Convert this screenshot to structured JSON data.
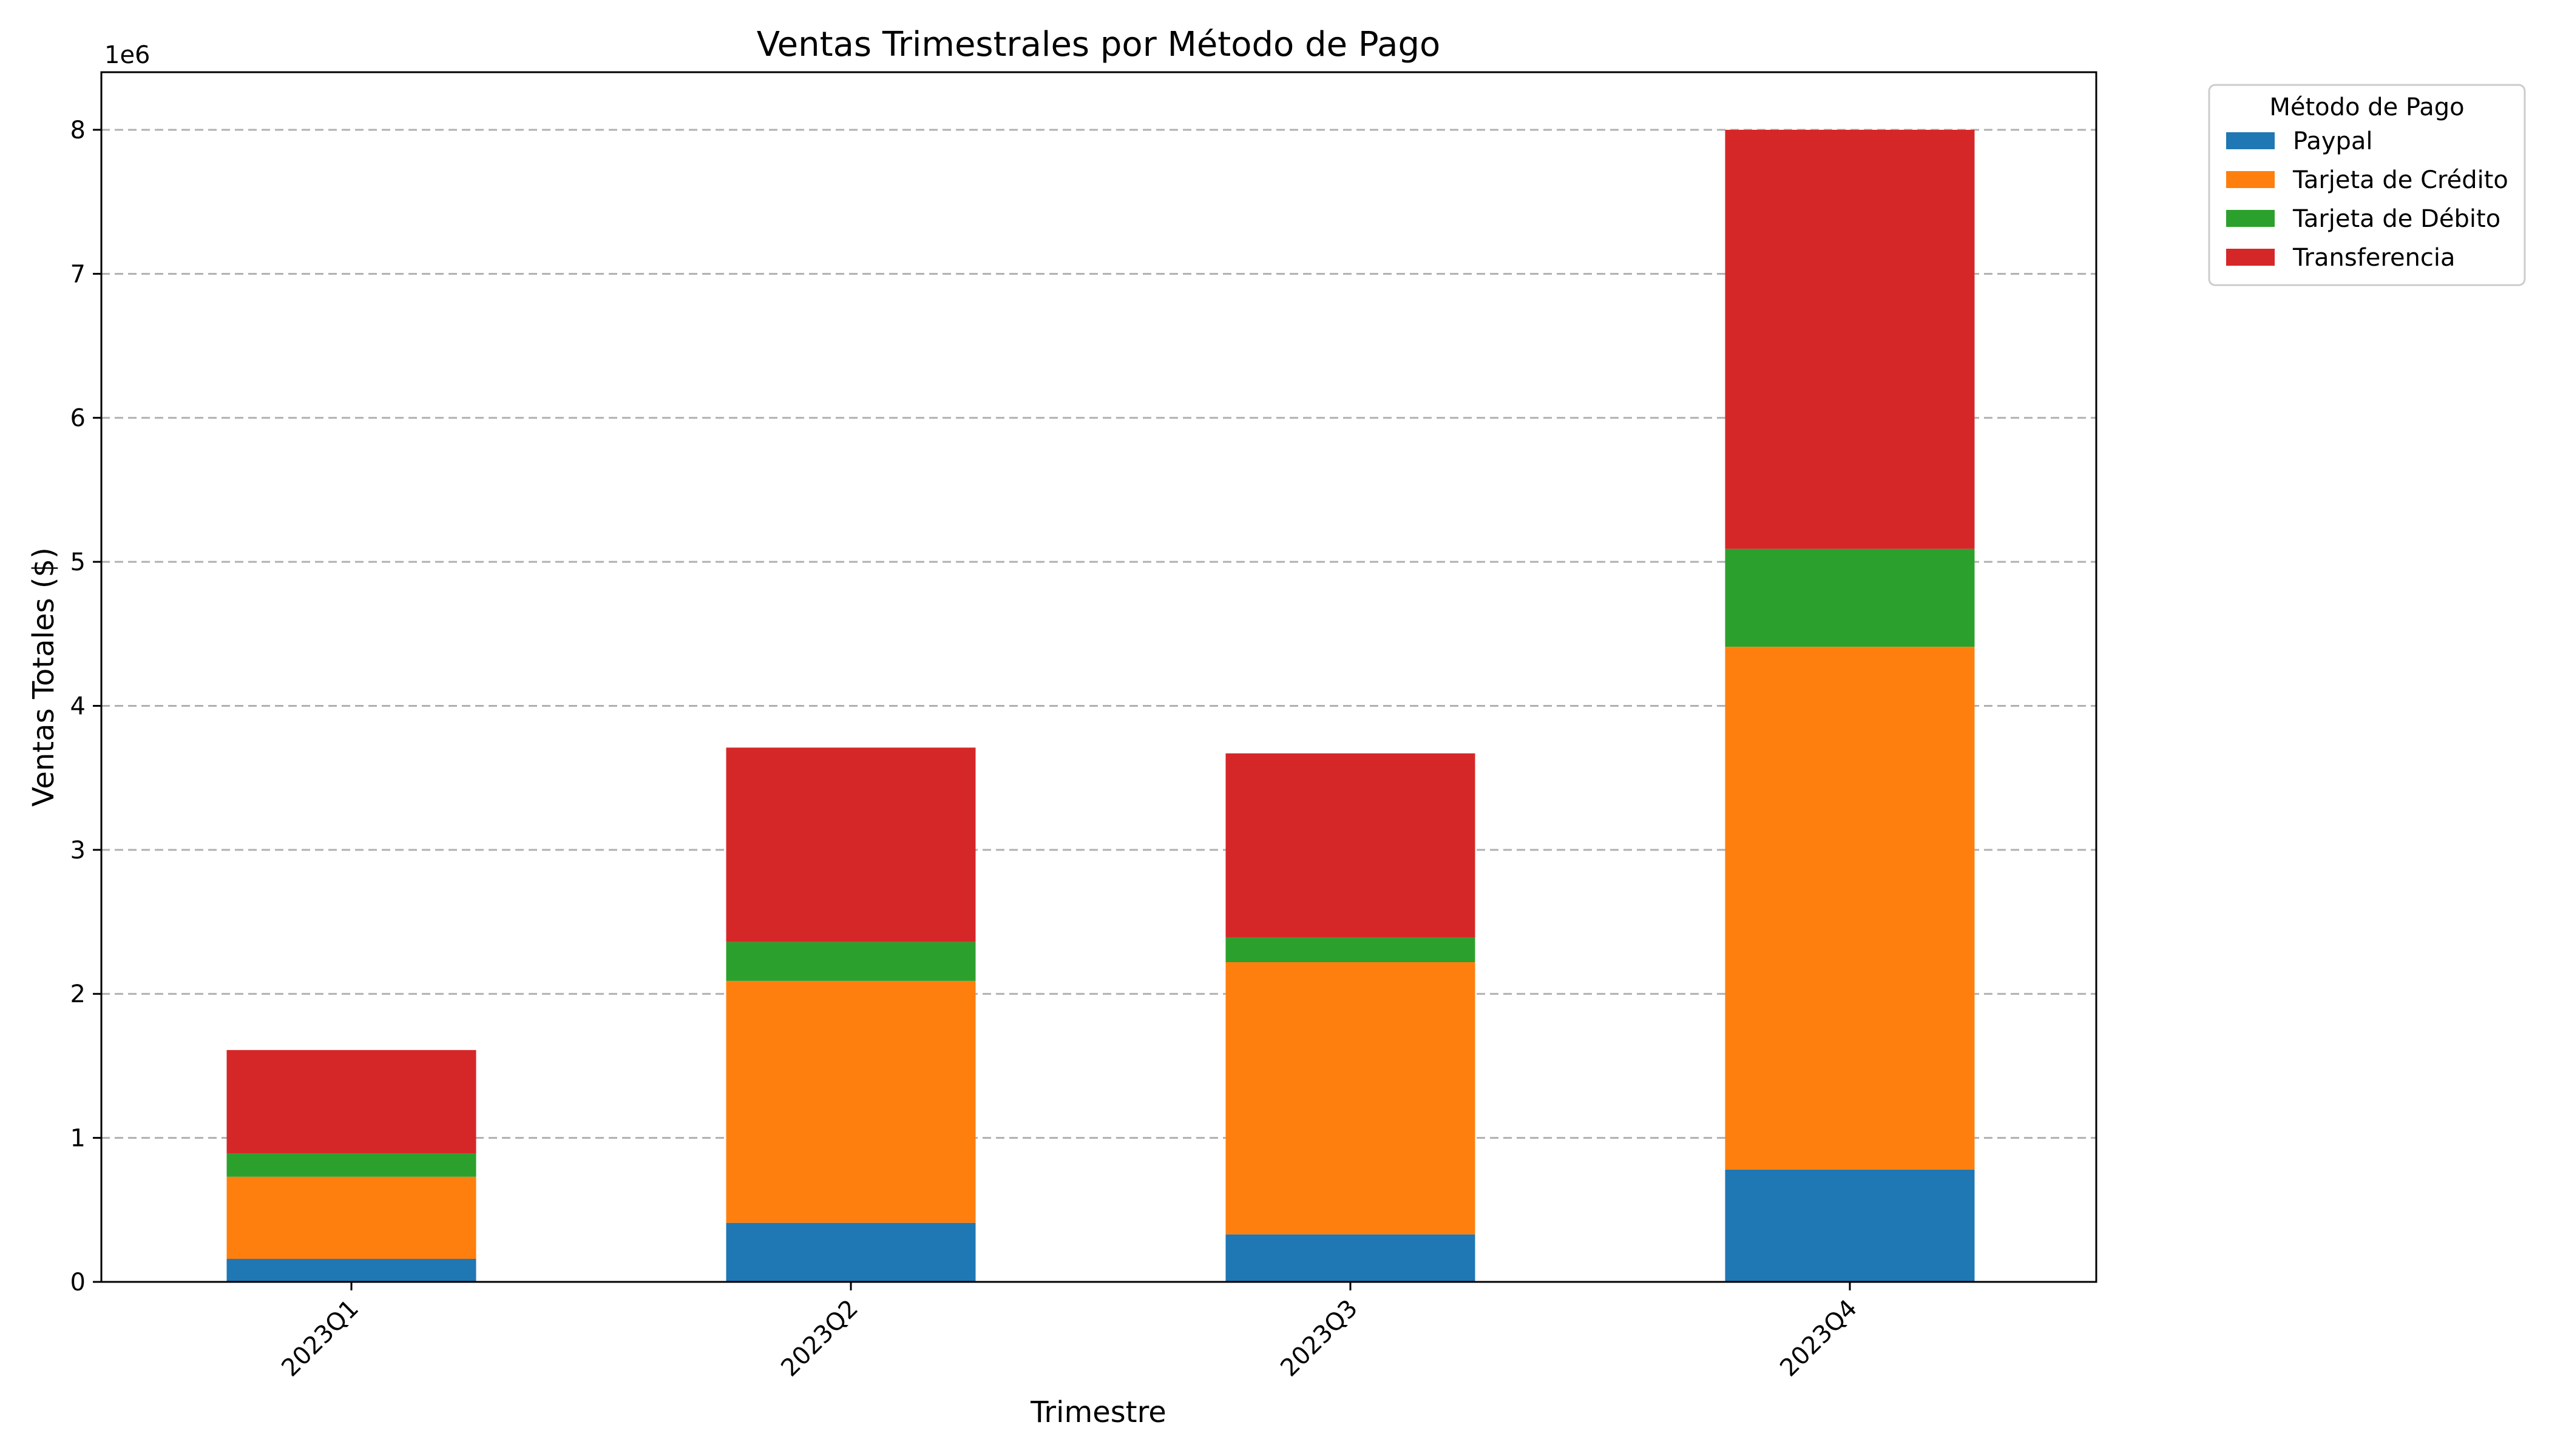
{
  "chart_data": {
    "type": "bar",
    "stacked": true,
    "title": "Ventas Trimestrales por Método de Pago",
    "xlabel": "Trimestre",
    "ylabel": "Ventas Totales ($)",
    "y_scale_label": "1e6",
    "categories": [
      "2023Q1",
      "2023Q2",
      "2023Q3",
      "2023Q4"
    ],
    "ylim": [
      0,
      8400000
    ],
    "yticks": [
      {
        "value": 0,
        "label": "0"
      },
      {
        "value": 1000000,
        "label": "1"
      },
      {
        "value": 2000000,
        "label": "2"
      },
      {
        "value": 3000000,
        "label": "3"
      },
      {
        "value": 4000000,
        "label": "4"
      },
      {
        "value": 5000000,
        "label": "5"
      },
      {
        "value": 6000000,
        "label": "6"
      },
      {
        "value": 7000000,
        "label": "7"
      },
      {
        "value": 8000000,
        "label": "8"
      }
    ],
    "grid": "y",
    "legend": {
      "title": "Método de Pago",
      "placement": "outside-top-right"
    },
    "series": [
      {
        "name": "Paypal",
        "color": "#1f77b4",
        "values": [
          160000,
          410000,
          330000,
          780000
        ]
      },
      {
        "name": "Tarjeta de Crédito",
        "color": "#ff7f0e",
        "values": [
          570000,
          1680000,
          1890000,
          3630000
        ]
      },
      {
        "name": "Tarjeta de Débito",
        "color": "#2ca02c",
        "values": [
          160000,
          270000,
          170000,
          680000
        ]
      },
      {
        "name": "Transferencia",
        "color": "#d62728",
        "values": [
          720000,
          1350000,
          1280000,
          2910000
        ]
      }
    ]
  }
}
